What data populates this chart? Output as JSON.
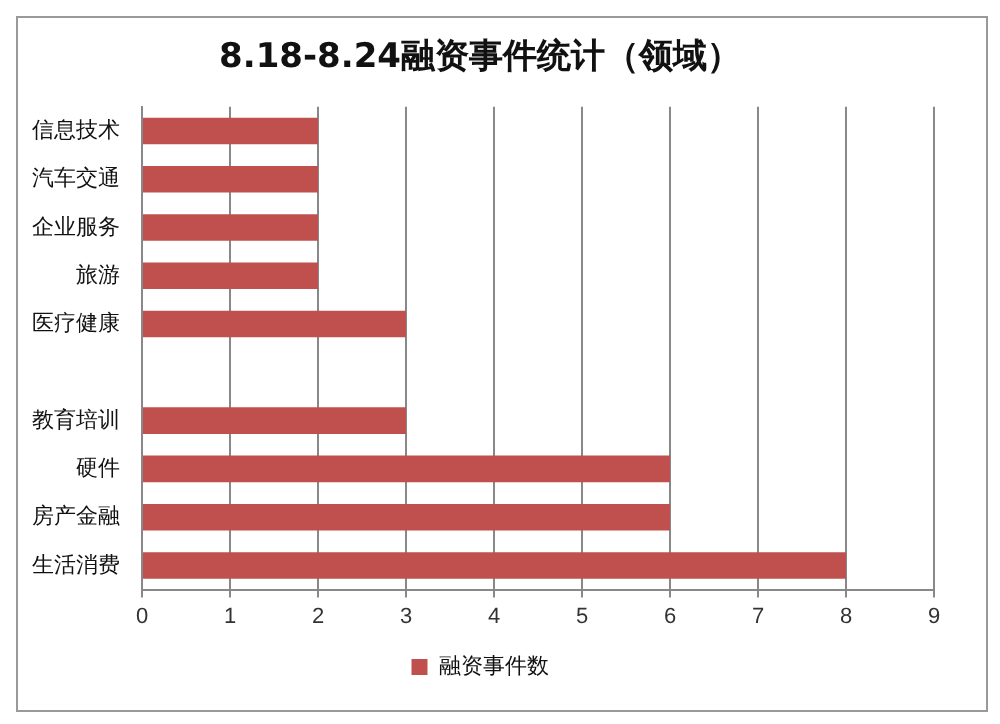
{
  "chart_data": {
    "type": "bar",
    "orientation": "horizontal",
    "title": "8.18-8.24融资事件统计（领域）",
    "categories": [
      "信息技术",
      "汽车交通",
      "企业服务",
      "旅游",
      "医疗健康",
      null,
      "教育培训",
      "硬件",
      "房产金融",
      "生活消费"
    ],
    "series": [
      {
        "name": "融资事件数",
        "color": "#c0504d",
        "values": [
          2,
          2,
          2,
          2,
          3,
          null,
          3,
          6,
          6,
          8
        ]
      }
    ],
    "xlim": [
      0,
      9
    ],
    "xticks": [
      0,
      1,
      2,
      3,
      4,
      5,
      6,
      7,
      8,
      9
    ],
    "grid": "x",
    "legend": "bottom"
  }
}
